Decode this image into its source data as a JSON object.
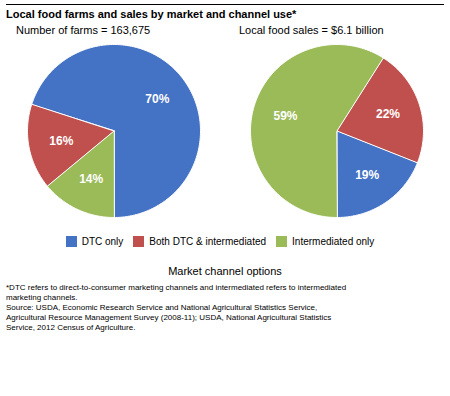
{
  "chart_data": [
    {
      "type": "pie",
      "title": "Local food farms and sales by market and channel use*",
      "subtitle": "Number of farms = 163,675",
      "categories": [
        "DTC only",
        "Both DTC & intermediated",
        "Intermediated only"
      ],
      "values": [
        70,
        16,
        14
      ],
      "value_labels": [
        "70%",
        "16%",
        "14%"
      ],
      "data_labels": true,
      "colors": [
        "#4472C4",
        "#C0504D",
        "#9BBB59"
      ],
      "legend": "bottom",
      "xlabel": "Market channel options",
      "annotations": [
        "*DTC refers to direct-to-consumer marketing channels and intermediated refers to intermediated\nmarketing channels.\nSource: USDA, Economic Research Service and National Agricultural Statistics Service,\nAgricultural Resource Management Survey (2008-11); USDA, National Agricultural Statistics\nService, 2012 Census of Agriculture."
      ]
    },
    {
      "type": "pie",
      "subtitle": "Local food sales = $6.1 billion",
      "categories": [
        "DTC only",
        "Both DTC & intermediated",
        "Intermediated only"
      ],
      "values": [
        19,
        22,
        59
      ],
      "value_labels": [
        "19%",
        "22%",
        "59%"
      ],
      "data_labels": true,
      "colors": [
        "#4472C4",
        "#C0504D",
        "#9BBB59"
      ]
    }
  ]
}
